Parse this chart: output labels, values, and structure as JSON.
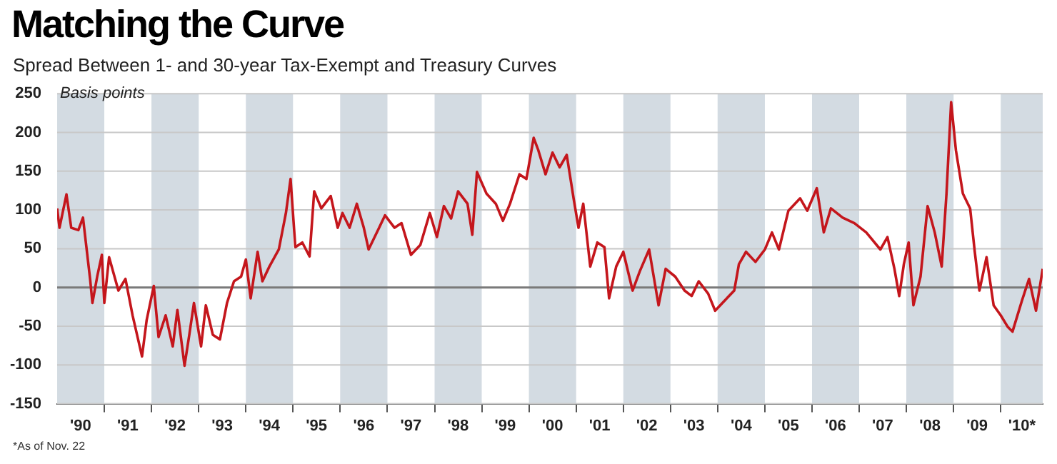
{
  "chart_data": {
    "type": "line",
    "title": "Matching the Curve",
    "subtitle": "Spread Between 1- and 30-year Tax-Exempt and Treasury Curves",
    "ylabel": "Basis points",
    "annotations": [
      "*As of Nov. 22"
    ],
    "x": [
      "1990-01-01",
      "1990-01-19",
      "1990-03-14",
      "1990-04-20",
      "1990-06-14",
      "1990-07-20",
      "1990-09-13",
      "1990-10-01",
      "1990-11-07",
      "1990-12-13",
      "1991-01-01",
      "1991-02-07",
      "1991-04-20",
      "1991-06-14",
      "1991-08-08",
      "1991-10-20",
      "1991-11-25",
      "1992-01-19",
      "1992-02-25",
      "1992-04-20",
      "1992-06-14",
      "1992-07-20",
      "1992-09-13",
      "1992-10-20",
      "1992-11-25",
      "1993-01-19",
      "1993-02-25",
      "1993-04-20",
      "1993-06-14",
      "1993-08-08",
      "1993-10-01",
      "1993-11-25",
      "1994-01-01",
      "1994-02-07",
      "1994-04-02",
      "1994-05-09",
      "1994-07-02",
      "1994-09-13",
      "1994-11-07",
      "1994-12-13",
      "1995-01-19",
      "1995-03-14",
      "1995-05-09",
      "1995-06-14",
      "1995-08-08",
      "1995-10-20",
      "1995-12-13",
      "1996-01-19",
      "1996-03-14",
      "1996-05-09",
      "1996-07-02",
      "1996-08-08",
      "1996-10-20",
      "1996-12-13",
      "1997-02-25",
      "1997-04-20",
      "1997-07-02",
      "1997-09-13",
      "1997-11-25",
      "1998-01-19",
      "1998-03-14",
      "1998-05-09",
      "1998-07-02",
      "1998-09-13",
      "1998-10-20",
      "1998-11-25",
      "1999-02-07",
      "1999-04-20",
      "1999-06-14",
      "1999-08-08",
      "1999-10-20",
      "1999-12-13",
      "2000-02-07",
      "2000-03-14",
      "2000-05-09",
      "2000-07-02",
      "2000-08-26",
      "2000-10-20",
      "2000-12-13",
      "2001-01-19",
      "2001-02-25",
      "2001-04-20",
      "2001-06-14",
      "2001-08-08",
      "2001-09-13",
      "2001-11-07",
      "2002-01-01",
      "2002-03-14",
      "2002-05-09",
      "2002-07-20",
      "2002-10-01",
      "2002-11-25",
      "2003-02-07",
      "2003-04-20",
      "2003-06-14",
      "2003-08-08",
      "2003-10-20",
      "2003-12-13",
      "2004-02-07",
      "2004-05-09",
      "2004-06-14",
      "2004-08-08",
      "2004-10-20",
      "2005-01-01",
      "2005-02-25",
      "2005-04-20",
      "2005-07-02",
      "2005-10-01",
      "2005-11-25",
      "2006-02-07",
      "2006-04-02",
      "2006-05-27",
      "2006-08-26",
      "2006-11-25",
      "2007-02-25",
      "2007-06-14",
      "2007-08-08",
      "2007-10-01",
      "2007-11-07",
      "2007-12-13",
      "2008-01-19",
      "2008-02-25",
      "2008-04-20",
      "2008-06-14",
      "2008-08-08",
      "2008-10-01",
      "2008-11-07",
      "2008-12-13",
      "2009-01-19",
      "2009-03-14",
      "2009-05-09",
      "2009-06-14",
      "2009-07-20",
      "2009-09-13",
      "2009-11-07",
      "2010-01-01",
      "2010-02-25",
      "2010-04-02",
      "2010-06-14",
      "2010-08-08",
      "2010-10-01",
      "2010-11-22"
    ],
    "series": [
      {
        "color": "#c4161c",
        "values": [
          102,
          77,
          120,
          77,
          74,
          90,
          11,
          -20,
          14,
          42,
          -20,
          39,
          -4,
          11,
          -36,
          -89,
          -42,
          2,
          -64,
          -36,
          -76,
          -29,
          -101,
          -61,
          -20,
          -76,
          -23,
          -61,
          -67,
          -20,
          8,
          14,
          36,
          -14,
          46,
          8,
          27,
          49,
          96,
          140,
          52,
          58,
          40,
          124,
          102,
          118,
          77,
          96,
          77,
          108,
          77,
          49,
          74,
          93,
          77,
          83,
          42,
          55,
          96,
          65,
          105,
          89,
          124,
          108,
          68,
          149,
          121,
          108,
          86,
          108,
          146,
          140,
          193,
          177,
          146,
          174,
          155,
          171,
          114,
          77,
          108,
          27,
          58,
          52,
          -14,
          27,
          46,
          -4,
          21,
          49,
          -23,
          24,
          14,
          -4,
          -11,
          8,
          -8,
          -30,
          -20,
          -4,
          30,
          46,
          33,
          49,
          71,
          49,
          99,
          115,
          99,
          128,
          71,
          102,
          90,
          83,
          71,
          49,
          65,
          24,
          -11,
          30,
          58,
          -23,
          14,
          105,
          71,
          27,
          121,
          239,
          177,
          121,
          102,
          46,
          -4,
          39,
          -23,
          -36,
          -51,
          -57,
          -17,
          11,
          -30,
          24
        ]
      }
    ],
    "xlim": [
      "1990-01-01",
      "2010-11-22"
    ],
    "xticks": [
      {
        "value": "1990-07-02",
        "label": "'90"
      },
      {
        "value": "1991-01-01",
        "label": null
      },
      {
        "value": "1991-07-02",
        "label": "'91"
      },
      {
        "value": "1992-01-01",
        "label": null
      },
      {
        "value": "1992-07-02",
        "label": "'92"
      },
      {
        "value": "1993-01-01",
        "label": null
      },
      {
        "value": "1993-07-02",
        "label": "'93"
      },
      {
        "value": "1994-01-01",
        "label": null
      },
      {
        "value": "1994-07-02",
        "label": "'94"
      },
      {
        "value": "1995-01-01",
        "label": null
      },
      {
        "value": "1995-07-02",
        "label": "'95"
      },
      {
        "value": "1996-01-01",
        "label": null
      },
      {
        "value": "1996-07-02",
        "label": "'96"
      },
      {
        "value": "1997-01-01",
        "label": null
      },
      {
        "value": "1997-07-02",
        "label": "'97"
      },
      {
        "value": "1998-01-01",
        "label": null
      },
      {
        "value": "1998-07-02",
        "label": "'98"
      },
      {
        "value": "1999-01-01",
        "label": null
      },
      {
        "value": "1999-07-02",
        "label": "'99"
      },
      {
        "value": "2000-01-01",
        "label": null
      },
      {
        "value": "2000-07-02",
        "label": "'00"
      },
      {
        "value": "2001-01-01",
        "label": null
      },
      {
        "value": "2001-07-02",
        "label": "'01"
      },
      {
        "value": "2002-01-01",
        "label": null
      },
      {
        "value": "2002-07-02",
        "label": "'02"
      },
      {
        "value": "2003-01-01",
        "label": null
      },
      {
        "value": "2003-07-02",
        "label": "'03"
      },
      {
        "value": "2004-01-01",
        "label": null
      },
      {
        "value": "2004-07-02",
        "label": "'04"
      },
      {
        "value": "2005-01-01",
        "label": null
      },
      {
        "value": "2005-07-02",
        "label": "'05"
      },
      {
        "value": "2006-01-01",
        "label": null
      },
      {
        "value": "2006-07-02",
        "label": "'06"
      },
      {
        "value": "2007-01-01",
        "label": null
      },
      {
        "value": "2007-07-02",
        "label": "'07"
      },
      {
        "value": "2008-01-01",
        "label": null
      },
      {
        "value": "2008-07-02",
        "label": "'08"
      },
      {
        "value": "2009-01-01",
        "label": null
      },
      {
        "value": "2009-07-02",
        "label": "'09"
      },
      {
        "value": "2010-01-01",
        "label": null
      },
      {
        "value": "2010-06-14",
        "label": "'10*"
      }
    ],
    "ylim": [
      -150,
      250
    ],
    "yticks": [
      -150,
      -100,
      -50,
      0,
      50,
      100,
      150,
      200,
      250
    ],
    "grid": "y",
    "bands": [
      {
        "axis": "x",
        "from": "1990-01-01",
        "to": "1991-01-01",
        "color": "#d3dbe2"
      },
      {
        "axis": "x",
        "from": "1992-01-01",
        "to": "1993-01-01",
        "color": "#d3dbe2"
      },
      {
        "axis": "x",
        "from": "1994-01-01",
        "to": "1995-01-01",
        "color": "#d3dbe2"
      },
      {
        "axis": "x",
        "from": "1996-01-01",
        "to": "1997-01-01",
        "color": "#d3dbe2"
      },
      {
        "axis": "x",
        "from": "1998-01-01",
        "to": "1999-01-01",
        "color": "#d3dbe2"
      },
      {
        "axis": "x",
        "from": "2000-01-01",
        "to": "2001-01-01",
        "color": "#d3dbe2"
      },
      {
        "axis": "x",
        "from": "2002-01-01",
        "to": "2003-01-01",
        "color": "#d3dbe2"
      },
      {
        "axis": "x",
        "from": "2004-01-01",
        "to": "2005-01-01",
        "color": "#d3dbe2"
      },
      {
        "axis": "x",
        "from": "2006-01-01",
        "to": "2007-01-01",
        "color": "#d3dbe2"
      },
      {
        "axis": "x",
        "from": "2008-01-01",
        "to": "2009-01-01",
        "color": "#d3dbe2"
      },
      {
        "axis": "x",
        "from": "2010-01-01",
        "to": "2010-11-22",
        "color": "#d3dbe2"
      }
    ],
    "ref_lines": [
      {
        "axis": "y",
        "value": 0,
        "color": "#7a7a7a"
      }
    ]
  }
}
